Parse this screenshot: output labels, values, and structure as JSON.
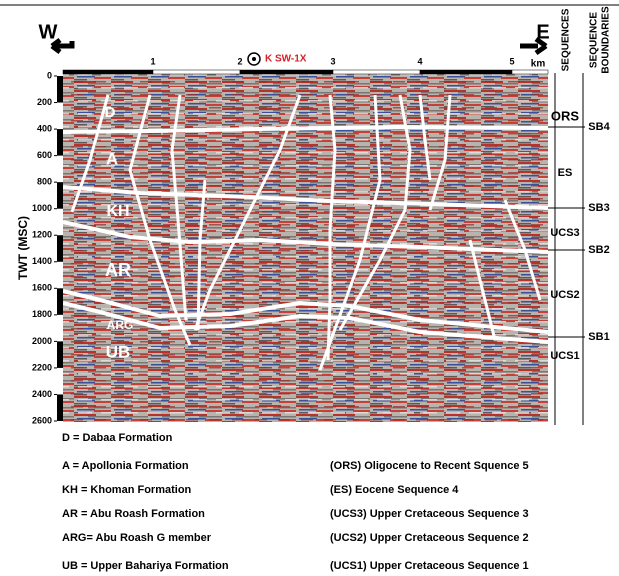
{
  "header": {
    "west": "W",
    "east": "E",
    "well": "K SW-1X",
    "distance_ticks": [
      1,
      2,
      3,
      4,
      5
    ],
    "distance_unit": "km",
    "sequences_title": "SEQUENCES",
    "boundaries_title": [
      "SEQUENCE",
      "BOUNDARIES"
    ]
  },
  "axis": {
    "title": "TWT (MSC)",
    "ticks": [
      0,
      200,
      400,
      600,
      800,
      1000,
      1200,
      1400,
      1600,
      1800,
      2000,
      2200,
      2400,
      2600
    ]
  },
  "formations": [
    "D",
    "A",
    "KH",
    "AR",
    "ARG",
    "UB"
  ],
  "sequences": [
    "ORS",
    "ES",
    "UCS3",
    "UCS2",
    "UCS1"
  ],
  "boundaries": [
    "SB4",
    "SB3",
    "SB2",
    "SB1"
  ],
  "legend": {
    "formations": [
      "D = Dabaa Formation",
      "A = Apollonia Formation",
      "KH = Khoman Formation",
      "AR = Abu Roash Formation",
      "ARG= Abu Roash G member",
      "UB = Upper Bahariya Formation"
    ],
    "sequences": [
      "(ORS)  Oligocene to Recent Squence 5",
      "(ES) Eocene Sequence 4",
      "(UCS3) Upper Cretaceous Sequence 3",
      "(UCS2) Upper Cretaceous Sequence 2",
      "(UCS1) Upper Cretaceous Sequence 1"
    ]
  }
}
